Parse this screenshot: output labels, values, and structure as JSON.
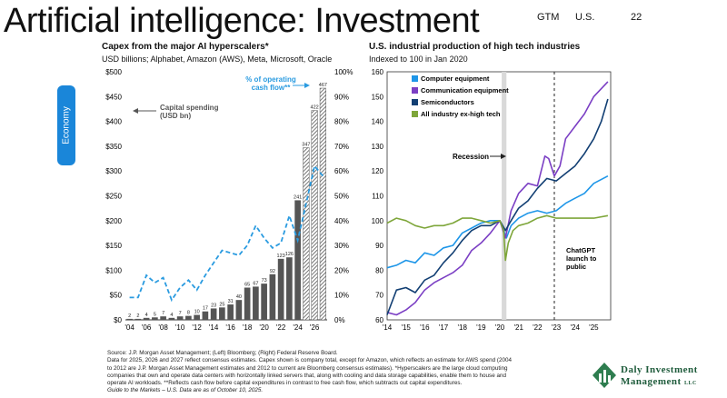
{
  "slide": {
    "title": "Artificial intelligence: Investment",
    "header_gtm": "GTM",
    "header_region": "U.S.",
    "page_number": "22",
    "side_tab": "Economy"
  },
  "footer": {
    "lines": [
      "Source: J.P. Morgan Asset Management; (Left) Bloomberg; (Right) Federal Reserve Board.",
      "Data for 2025, 2026 and 2027 reflect consensus estimates. Capex shown is company total, except for Amazon, which reflects an estimate for AWS spend (2004",
      "to 2012 are J.P. Morgan Asset Management estimates and 2012 to current are Bloomberg consensus estimates). *Hyperscalers are the large cloud computing",
      "companies that own and operate data centers with horizontally linked servers that, along with cooling and data storage capabilities, enable them to house and",
      "operate AI workloads. **Reflects cash flow before capital expenditures in contrast to free cash flow, which subtracts out capital expenditures.",
      "Guide to the Markets – U.S. Data are as of October 10, 2025."
    ]
  },
  "logo": {
    "line1": "Daly Investment",
    "line2": "Management",
    "suffix": "LLC"
  },
  "chart_data": [
    {
      "type": "bar",
      "title": "Capex from the major AI hyperscalers*",
      "subtitle": "USD billions; Alphabet, Amazon (AWS), Meta, Microsoft, Oracle",
      "categories": [
        "'04",
        "'05",
        "'06",
        "'07",
        "'08",
        "'09",
        "'10",
        "'11",
        "'12",
        "'13",
        "'14",
        "'15",
        "'16",
        "'17",
        "'18",
        "'19",
        "'20",
        "'21",
        "'22",
        "'23",
        "'24",
        "'25",
        "'26",
        "'27"
      ],
      "x_tick_labels": [
        "'04",
        "'06",
        "'08",
        "'10",
        "'12",
        "'14",
        "'16",
        "'18",
        "'20",
        "'22",
        "'24",
        "'26"
      ],
      "series": [
        {
          "name": "Capital spending (USD bn)",
          "axis": "left",
          "values": [
            2,
            2,
            4,
            5,
            7,
            4,
            7,
            8,
            10,
            17,
            23,
            25,
            31,
            40,
            65,
            67,
            73,
            92,
            123,
            126,
            241,
            347,
            422,
            467
          ],
          "estimate_from_index": 21
        },
        {
          "name": "% of operating cash flow**",
          "axis": "right",
          "type": "line",
          "color": "#2a9be0",
          "values": [
            9,
            9,
            18,
            15,
            17,
            8,
            13,
            16,
            12,
            18,
            23,
            28,
            27,
            26,
            30,
            38,
            33,
            29,
            31,
            42,
            32,
            47,
            62,
            58
          ]
        }
      ],
      "ylim_left": [
        0,
        500
      ],
      "yticks_left": [
        "$0",
        "$50",
        "$100",
        "$150",
        "$200",
        "$250",
        "$300",
        "$350",
        "$400",
        "$450",
        "$500"
      ],
      "ylim_right": [
        0,
        100
      ],
      "yticks_right": [
        "0%",
        "10%",
        "20%",
        "30%",
        "40%",
        "50%",
        "60%",
        "70%",
        "80%",
        "90%",
        "100%"
      ],
      "annotations": {
        "capex_label_line1": "Capital spending",
        "capex_label_line2": "(USD bn)",
        "ocf_label_line1": "% of operating",
        "ocf_label_line2": "cash flow**"
      },
      "colors": {
        "bar": "#555555",
        "line": "#2a9be0"
      }
    },
    {
      "type": "line",
      "title": "U.S. industrial production of high tech industries",
      "subtitle": "Indexed to 100 in Jan 2020",
      "x_tick_labels": [
        "'14",
        "'15",
        "'16",
        "'17",
        "'18",
        "'19",
        "'20",
        "'21",
        "'22",
        "'23",
        "'24",
        "'25"
      ],
      "xlim": [
        2014,
        2025.9
      ],
      "ylim": [
        60,
        160
      ],
      "yticks": [
        "60",
        "70",
        "80",
        "90",
        "100",
        "110",
        "120",
        "130",
        "140",
        "150",
        "160"
      ],
      "legend_position": "top-left",
      "series": [
        {
          "name": "Computer equipment",
          "color": "#1e96e8",
          "x": [
            2014,
            2014.5,
            2015,
            2015.5,
            2016,
            2016.5,
            2017,
            2017.5,
            2018,
            2018.5,
            2019,
            2019.5,
            2020,
            2020.2,
            2020.35,
            2020.6,
            2021,
            2021.5,
            2022,
            2022.5,
            2023,
            2023.5,
            2024,
            2024.5,
            2025,
            2025.75
          ],
          "y": [
            81,
            82,
            84,
            83,
            87,
            86,
            89,
            90,
            95,
            97,
            99,
            100,
            100,
            96,
            93,
            98,
            101,
            103,
            104,
            103,
            104,
            107,
            109,
            111,
            115,
            118
          ]
        },
        {
          "name": "Communication equipment",
          "color": "#7b3fc4",
          "x": [
            2014,
            2014.5,
            2015,
            2015.5,
            2016,
            2016.5,
            2017,
            2017.5,
            2018,
            2018.5,
            2019,
            2019.5,
            2020,
            2020.3,
            2020.6,
            2021,
            2021.5,
            2022,
            2022.4,
            2022.6,
            2022.9,
            2023.2,
            2023.5,
            2024,
            2024.5,
            2025,
            2025.75
          ],
          "y": [
            63,
            62,
            64,
            67,
            72,
            75,
            77,
            79,
            82,
            88,
            91,
            95,
            100,
            93,
            104,
            111,
            115,
            114,
            126,
            125,
            118,
            122,
            133,
            138,
            143,
            150,
            156
          ]
        },
        {
          "name": "Semiconductors",
          "color": "#123f73",
          "x": [
            2014,
            2014.5,
            2015,
            2015.5,
            2016,
            2016.5,
            2017,
            2017.5,
            2018,
            2018.5,
            2019,
            2019.5,
            2020,
            2020.3,
            2020.6,
            2021,
            2021.5,
            2022,
            2022.5,
            2023,
            2023.5,
            2024,
            2024.5,
            2025,
            2025.4,
            2025.75
          ],
          "y": [
            62,
            72,
            73,
            71,
            76,
            78,
            83,
            87,
            92,
            96,
            98,
            98,
            100,
            96,
            100,
            105,
            108,
            113,
            117,
            116,
            119,
            122,
            127,
            133,
            140,
            149
          ]
        },
        {
          "name": "All industry ex-high tech",
          "color": "#7ea63a",
          "x": [
            2014,
            2014.5,
            2015,
            2015.5,
            2016,
            2016.5,
            2017,
            2017.5,
            2018,
            2018.5,
            2019,
            2019.5,
            2020,
            2020.2,
            2020.3,
            2020.45,
            2020.7,
            2021,
            2021.5,
            2022,
            2022.5,
            2023,
            2023.5,
            2024,
            2024.5,
            2025,
            2025.75
          ],
          "y": [
            99,
            101,
            100,
            98,
            97,
            98,
            98,
            99,
            101,
            101,
            100,
            99,
            100,
            96,
            84,
            91,
            96,
            98,
            99,
            101,
            102,
            101,
            101,
            101,
            101,
            101,
            102
          ]
        }
      ],
      "recession": {
        "label": "Recession",
        "start": 2020.1,
        "end": 2020.35
      },
      "annotation_chatgpt": {
        "line1": "ChatGPT",
        "line2": "launch to",
        "line3": "public",
        "x": 2022.9
      }
    }
  ]
}
